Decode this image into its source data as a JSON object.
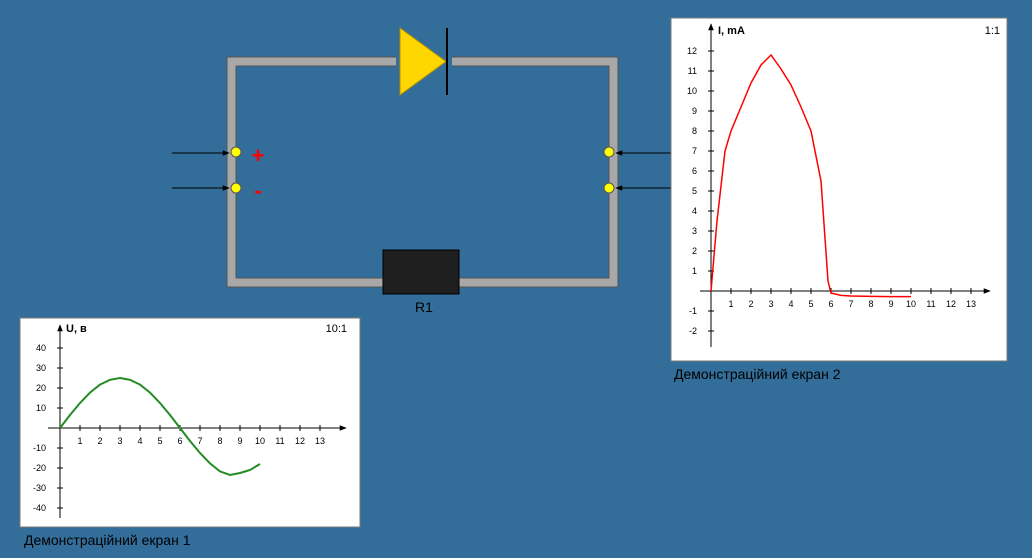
{
  "circuit": {
    "resistor_label": "R1",
    "plus_sign": "+",
    "minus_sign": "-",
    "wire_color": "#a8a8a8",
    "diode_color": "#ffd700",
    "terminal_color": "#ffff00",
    "sign_color": "#ff0000"
  },
  "screen1": {
    "caption": "Демонстраційний екран 1",
    "scale_label": "10:1",
    "chart_data": {
      "type": "line",
      "title": "",
      "xlabel": "",
      "ylabel": "U, в",
      "x_ticks": [
        1,
        2,
        3,
        4,
        5,
        6,
        7,
        8,
        9,
        10,
        11,
        12,
        13
      ],
      "y_ticks": [
        40,
        30,
        20,
        10,
        -10,
        -20,
        -30,
        -40
      ],
      "xlim": [
        0,
        14
      ],
      "ylim": [
        -45,
        45
      ],
      "series": [
        {
          "name": "U",
          "color": "#228b22",
          "x": [
            0,
            0.5,
            1,
            1.5,
            2,
            2.5,
            3,
            3.5,
            4,
            4.5,
            5,
            5.5,
            6,
            6.5,
            7,
            7.5,
            8,
            8.5,
            9,
            9.5,
            10
          ],
          "y": [
            0,
            6.5,
            12.5,
            17.7,
            21.7,
            24.1,
            25,
            24.1,
            21.7,
            17.7,
            12.5,
            6.5,
            0,
            -6.5,
            -12.5,
            -17.7,
            -21.7,
            -23.5,
            -22.5,
            -21,
            -18
          ]
        }
      ]
    }
  },
  "screen2": {
    "caption": "Демонстраційний екран 2",
    "scale_label": "1:1",
    "chart_data": {
      "type": "line",
      "title": "",
      "xlabel": "",
      "ylabel": "I, mA",
      "x_ticks": [
        1,
        2,
        3,
        4,
        5,
        6,
        7,
        8,
        9,
        10,
        11,
        12,
        13
      ],
      "y_ticks": [
        12,
        11,
        10,
        9,
        8,
        7,
        6,
        5,
        4,
        3,
        2,
        1,
        -1,
        -2
      ],
      "xlim": [
        0,
        14
      ],
      "ylim": [
        -3,
        13
      ],
      "series": [
        {
          "name": "I",
          "color": "#ff0000",
          "x": [
            0,
            0.3,
            0.7,
            1,
            1.5,
            2,
            2.5,
            3,
            3.5,
            4,
            4.5,
            5,
            5.5,
            5.85,
            6,
            6.5,
            7,
            8,
            9,
            10
          ],
          "y": [
            0,
            3.5,
            7,
            8,
            9.2,
            10.4,
            11.3,
            11.8,
            11.1,
            10.3,
            9.2,
            8,
            5.5,
            0.5,
            -0.1,
            -0.22,
            -0.25,
            -0.27,
            -0.28,
            -0.28
          ]
        }
      ]
    }
  }
}
